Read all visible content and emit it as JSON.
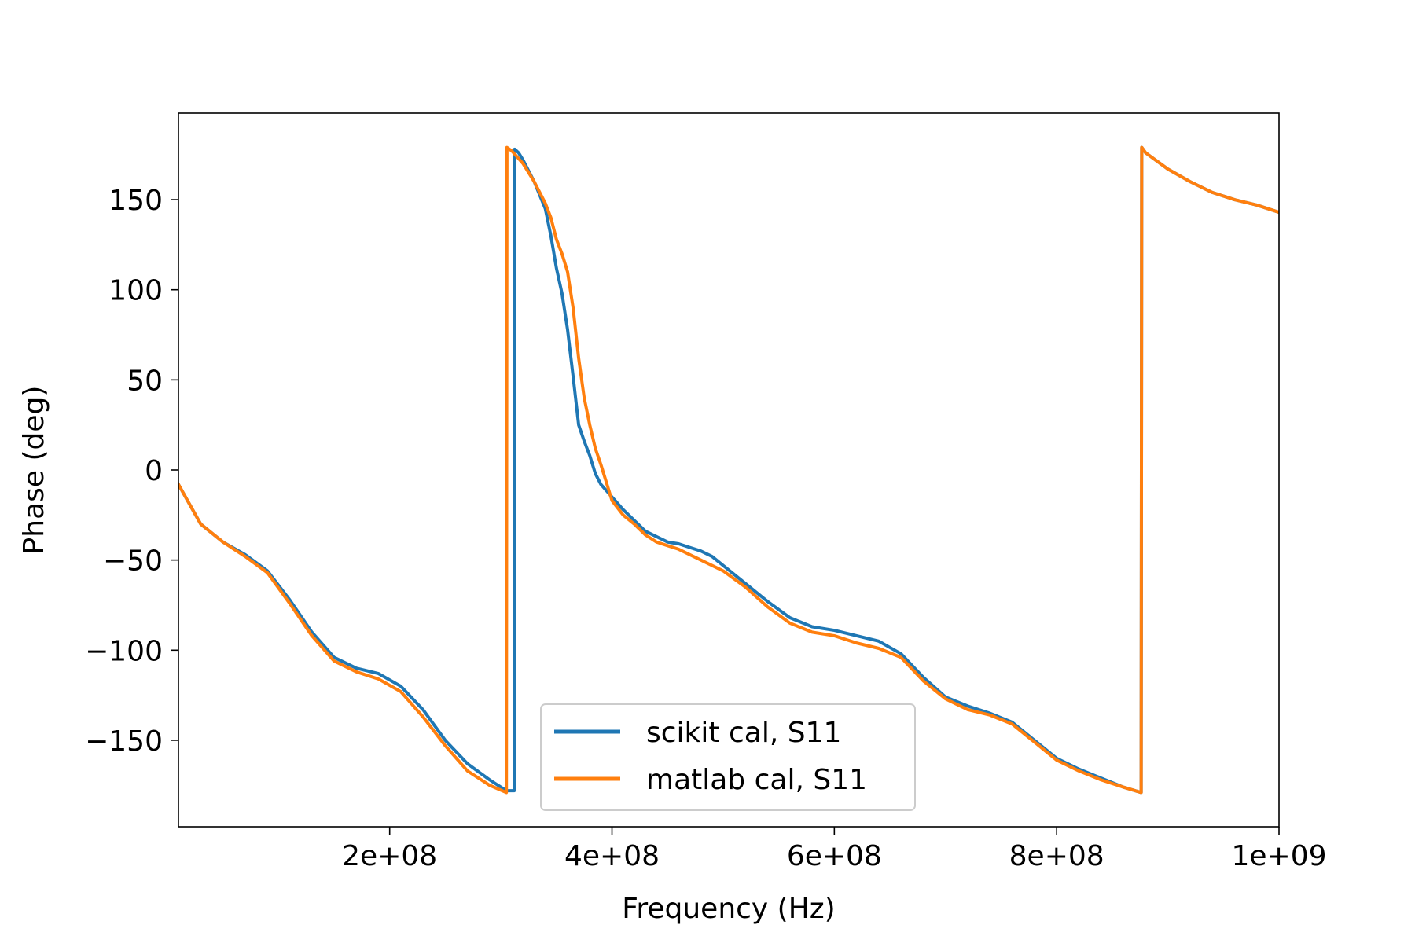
{
  "chart_data": {
    "type": "line",
    "title": "",
    "xlabel": "Frequency (Hz)",
    "ylabel": "Phase (deg)",
    "xlim": [
      10000000,
      1000000000
    ],
    "ylim": [
      -198,
      198
    ],
    "x_ticks": [
      200000000,
      400000000,
      600000000,
      800000000,
      1000000000
    ],
    "x_tick_labels": [
      "2e+08",
      "4e+08",
      "6e+08",
      "8e+08",
      "1e+09"
    ],
    "y_ticks": [
      150,
      100,
      50,
      0,
      -50,
      -100,
      -150
    ],
    "y_tick_labels": [
      "150",
      "100",
      "50",
      "0",
      "−50",
      "−100",
      "−150"
    ],
    "grid": false,
    "legend_position": "lower-center",
    "series": [
      {
        "name": "scikit cal, S11",
        "color": "#1f77b4",
        "x": [
          10000000,
          30000000,
          50000000,
          70000000,
          90000000,
          110000000,
          130000000,
          150000000,
          170000000,
          190000000,
          210000000,
          230000000,
          250000000,
          270000000,
          290000000,
          305000000,
          312000000,
          312500000,
          316000000,
          320000000,
          330000000,
          340000000,
          345000000,
          350000000,
          355000000,
          360000000,
          365000000,
          370000000,
          375000000,
          380000000,
          385000000,
          390000000,
          400000000,
          410000000,
          420000000,
          430000000,
          440000000,
          450000000,
          460000000,
          470000000,
          480000000,
          490000000,
          500000000,
          520000000,
          540000000,
          560000000,
          580000000,
          600000000,
          620000000,
          640000000,
          660000000,
          680000000,
          700000000,
          720000000,
          740000000,
          760000000,
          780000000,
          800000000,
          820000000,
          840000000,
          860000000,
          876000000,
          876500000,
          880000000,
          900000000,
          920000000,
          940000000,
          960000000,
          980000000,
          1000000000
        ],
        "y": [
          -8,
          -30,
          -40,
          -47,
          -56,
          -72,
          -90,
          -104,
          -110,
          -113,
          -120,
          -133,
          -150,
          -163,
          -172,
          -178,
          -178,
          178,
          176,
          172,
          160,
          145,
          130,
          112,
          98,
          78,
          52,
          25,
          16,
          8,
          -2,
          -8,
          -15,
          -22,
          -28,
          -34,
          -37,
          -40,
          -41,
          -43,
          -45,
          -48,
          -53,
          -63,
          -73,
          -82,
          -87,
          -89,
          -92,
          -95,
          -102,
          -115,
          -126,
          -131,
          -135,
          -140,
          -150,
          -160,
          -166,
          -171,
          -176,
          -179,
          179,
          176,
          167,
          160,
          154,
          150,
          147,
          143
        ]
      },
      {
        "name": "matlab cal, S11",
        "color": "#ff7f0e",
        "x": [
          10000000,
          30000000,
          50000000,
          70000000,
          90000000,
          110000000,
          130000000,
          150000000,
          170000000,
          190000000,
          210000000,
          230000000,
          250000000,
          270000000,
          290000000,
          305000000,
          305500000,
          310000000,
          320000000,
          330000000,
          340000000,
          345000000,
          350000000,
          355000000,
          360000000,
          365000000,
          370000000,
          375000000,
          380000000,
          385000000,
          390000000,
          400000000,
          410000000,
          420000000,
          430000000,
          440000000,
          450000000,
          460000000,
          470000000,
          480000000,
          490000000,
          500000000,
          520000000,
          540000000,
          560000000,
          580000000,
          600000000,
          620000000,
          640000000,
          660000000,
          680000000,
          700000000,
          720000000,
          740000000,
          760000000,
          780000000,
          800000000,
          820000000,
          840000000,
          860000000,
          876000000,
          876500000,
          880000000,
          900000000,
          920000000,
          940000000,
          960000000,
          980000000,
          1000000000
        ],
        "y": [
          -8,
          -30,
          -40,
          -48,
          -57,
          -74,
          -92,
          -106,
          -112,
          -116,
          -123,
          -137,
          -153,
          -167,
          -175,
          -179,
          179,
          177,
          170,
          160,
          148,
          140,
          128,
          120,
          110,
          90,
          62,
          40,
          25,
          12,
          3,
          -17,
          -25,
          -30,
          -36,
          -40,
          -42,
          -44,
          -47,
          -50,
          -53,
          -56,
          -65,
          -76,
          -85,
          -90,
          -92,
          -96,
          -99,
          -104,
          -117,
          -127,
          -133,
          -136,
          -141,
          -151,
          -161,
          -167,
          -172,
          -176,
          -179,
          179,
          176,
          167,
          160,
          154,
          150,
          147,
          143
        ]
      }
    ]
  }
}
